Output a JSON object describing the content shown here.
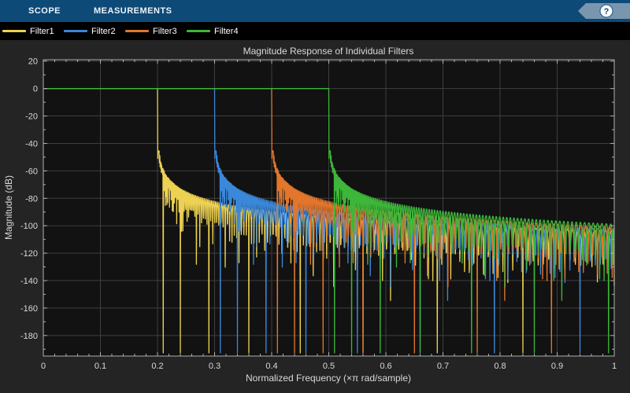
{
  "toolbar": {
    "tabs": [
      {
        "label": "SCOPE"
      },
      {
        "label": "MEASUREMENTS"
      }
    ],
    "help_label": "?"
  },
  "legend": {
    "items": [
      {
        "label": "Filter1",
        "color": "#edd152"
      },
      {
        "label": "Filter2",
        "color": "#3b87d9"
      },
      {
        "label": "Filter3",
        "color": "#e1762c"
      },
      {
        "label": "Filter4",
        "color": "#3db63a"
      }
    ]
  },
  "chart_data": {
    "type": "line",
    "title": "Magnitude Response of Individual Filters",
    "xlabel": "Normalized Frequency (×π rad/sample)",
    "ylabel": "Magnitude (dB)",
    "xlim": [
      0,
      1
    ],
    "ylim": [
      -195,
      21
    ],
    "xticks": [
      0,
      0.1,
      0.2,
      0.3,
      0.4,
      0.5,
      0.6,
      0.7,
      0.8,
      0.9,
      1
    ],
    "xtick_labels": [
      "0",
      "0.1",
      "0.2",
      "0.3",
      "0.4",
      "0.5",
      "0.6",
      "0.7",
      "0.8",
      "0.9",
      "1"
    ],
    "yticks": [
      20,
      0,
      -20,
      -40,
      -60,
      -80,
      -100,
      -120,
      -140,
      -160,
      -180
    ],
    "x_minor_step": 0.02,
    "y_minor_step": 10,
    "grid": true,
    "legend_position": "top-outside",
    "series": [
      {
        "name": "Filter1",
        "color": "#edd152",
        "response": "lowpass",
        "passband_db": 0,
        "cutoff": 0.2
      },
      {
        "name": "Filter2",
        "color": "#3b87d9",
        "response": "lowpass",
        "passband_db": 0,
        "cutoff": 0.3
      },
      {
        "name": "Filter3",
        "color": "#e1762c",
        "response": "lowpass",
        "passband_db": 0,
        "cutoff": 0.4
      },
      {
        "name": "Filter4",
        "color": "#3db63a",
        "response": "lowpass",
        "passband_db": 0,
        "cutoff": 0.5
      }
    ],
    "stopband": {
      "edge_db": -58,
      "decay_db_per_decade": 24,
      "envelope_cap_db": -45,
      "ripple_chirp": 90
    },
    "colors": {
      "plot_bg": "#121212",
      "panel_bg": "#242424",
      "grid": "#3f3f3f",
      "axis": "#b0b0b0",
      "text": "#d9d9d9"
    }
  }
}
